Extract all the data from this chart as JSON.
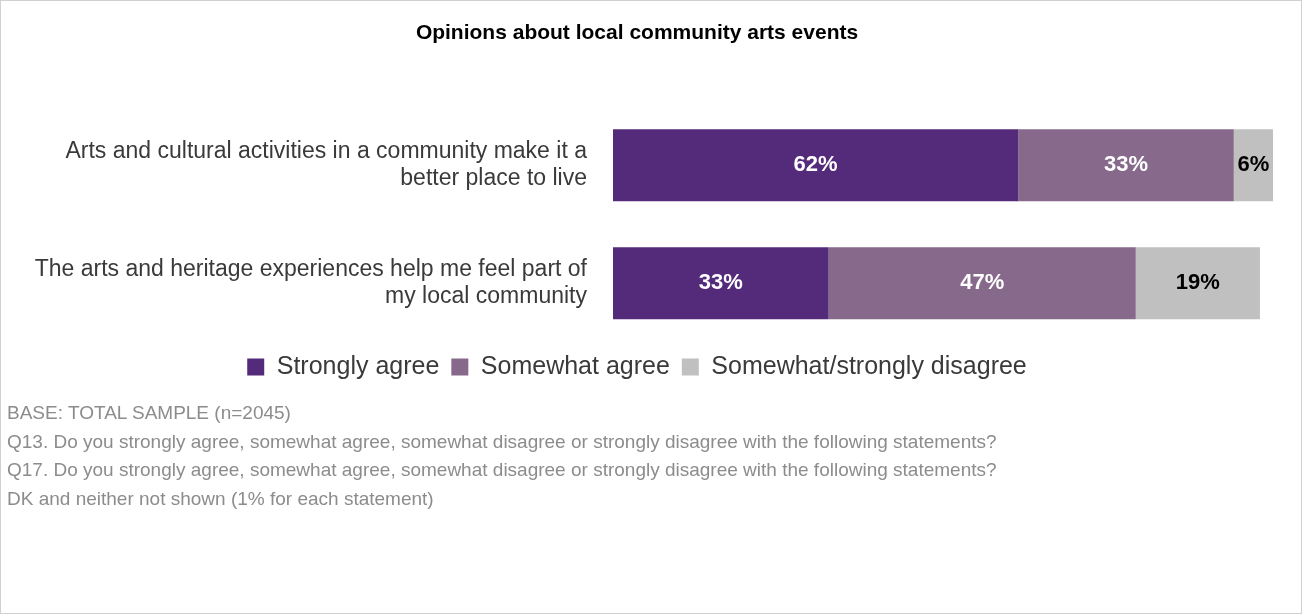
{
  "chart_data": {
    "type": "bar",
    "orientation": "horizontal",
    "stacked": true,
    "title": "Opinions about local community arts events",
    "categories": [
      "Arts and cultural activities in a community make it a better place to live",
      "The arts and heritage experiences help me feel part of my local community"
    ],
    "series": [
      {
        "name": "Strongly agree",
        "color": "#542a7a",
        "values": [
          62,
          33
        ],
        "value_labels": [
          "62%",
          "33%"
        ]
      },
      {
        "name": "Somewhat agree",
        "color": "#87698b",
        "values": [
          33,
          47
        ],
        "value_labels": [
          "33%",
          "47%"
        ]
      },
      {
        "name": "Somewhat/strongly disagree",
        "color": "#c0c0c0",
        "values": [
          6,
          19
        ],
        "value_labels": [
          "6%",
          "19%"
        ]
      }
    ],
    "legend": "bottom",
    "tick_labels": "y",
    "annotations": [
      "BASE: TOTAL SAMPLE (n=2045)",
      "Q13. Do you strongly agree, somewhat agree, somewhat disagree or strongly disagree with the following statements?",
      "Q17. Do you strongly agree, somewhat agree, somewhat disagree or strongly disagree with the following statements?",
      "DK and neither not shown (1% for each statement)"
    ]
  }
}
